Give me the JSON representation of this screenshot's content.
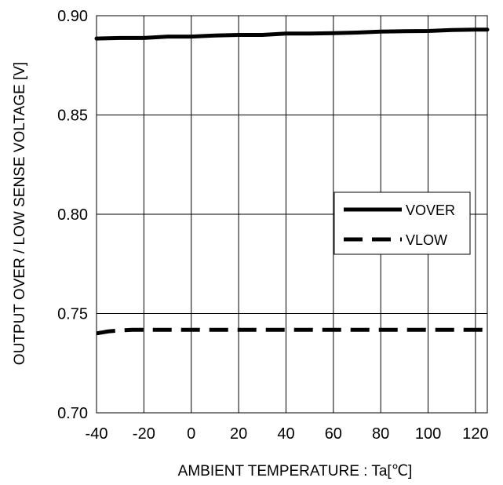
{
  "chart_data": {
    "type": "line",
    "title": "",
    "xlabel": "AMBIENT TEMPERATURE : Ta[℃]",
    "ylabel": "OUTPUT OVER / LOW SENSE VOLTAGE [V]",
    "xlim": [
      -40,
      125
    ],
    "ylim": [
      0.7,
      0.9
    ],
    "xticks": [
      -40,
      -20,
      0,
      20,
      40,
      60,
      80,
      100,
      120
    ],
    "xtick_labels": [
      "-40",
      "-20",
      "0",
      "20",
      "40",
      "60",
      "80",
      "100",
      "120"
    ],
    "yticks": [
      0.7,
      0.75,
      0.8,
      0.85,
      0.9
    ],
    "ytick_labels": [
      "0.70",
      "0.75",
      "0.80",
      "0.85",
      "0.90"
    ],
    "grid": true,
    "legend_position": "right",
    "series": [
      {
        "name": "VOVER",
        "style": "solid",
        "color": "#000000",
        "x": [
          -40,
          -30,
          -20,
          -10,
          0,
          10,
          20,
          30,
          40,
          50,
          60,
          70,
          80,
          90,
          100,
          110,
          120,
          125
        ],
        "y": [
          0.8885,
          0.8888,
          0.8888,
          0.8895,
          0.8895,
          0.89,
          0.8903,
          0.8903,
          0.891,
          0.891,
          0.8912,
          0.8915,
          0.892,
          0.8922,
          0.8923,
          0.8928,
          0.893,
          0.893
        ]
      },
      {
        "name": "VLOW",
        "style": "dashed",
        "color": "#000000",
        "x": [
          -40,
          -35,
          -30,
          -25,
          -20,
          0,
          20,
          40,
          60,
          80,
          100,
          120,
          125
        ],
        "y": [
          0.74,
          0.741,
          0.7415,
          0.7418,
          0.7418,
          0.7418,
          0.7418,
          0.7418,
          0.7418,
          0.7418,
          0.7418,
          0.7418,
          0.7418
        ]
      }
    ]
  }
}
